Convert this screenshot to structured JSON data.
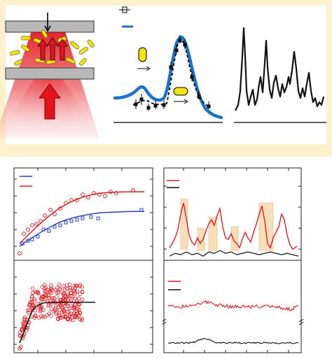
{
  "colors": {
    "background_tint": "#fdf0cc",
    "beam_red": "#e3121b",
    "plate_gray": "#b8b8b8",
    "particle_yellow": "#f3e312",
    "curve_blue": "#1a73c8",
    "series_red": "#d81f26",
    "series_blue": "#2b3fc4",
    "trace_black": "#111111",
    "highlight_band": "#f6deb8"
  },
  "icons": [
    "particle-trap-icon",
    "laser-beam-icon",
    "force-arrow-icon",
    "legend-marker-icon"
  ]
}
